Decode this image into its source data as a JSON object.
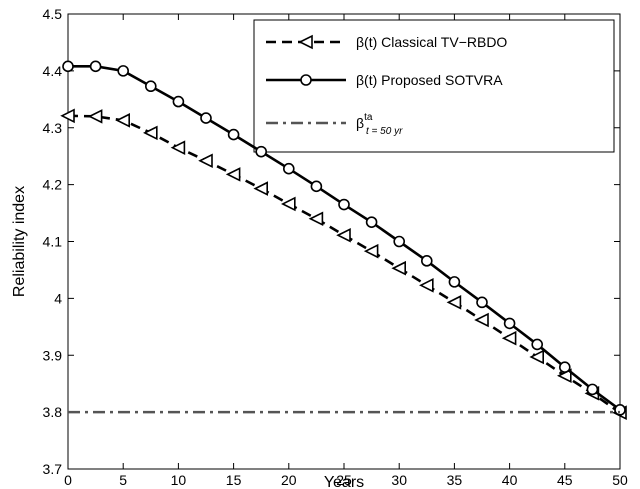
{
  "chart_data": {
    "type": "line",
    "xlabel": "Years",
    "ylabel": "Reliability index",
    "xlim": [
      0,
      50
    ],
    "ylim": [
      3.7,
      4.5
    ],
    "xticks": [
      "0",
      "5",
      "10",
      "15",
      "20",
      "25",
      "30",
      "35",
      "40",
      "45",
      "50"
    ],
    "yticks": [
      "3.7",
      "3.8",
      "3.9",
      "4",
      "4.1",
      "4.2",
      "4.3",
      "4.4",
      "4.5"
    ],
    "grid": false,
    "legend_position": "top-right",
    "series": [
      {
        "name": "β(t)  Classical TV−RBDO",
        "line_style": "dashed",
        "marker": "triangle-left",
        "color": "#000000",
        "x": [
          0,
          2.5,
          5,
          7.5,
          10,
          12.5,
          15,
          17.5,
          20,
          22.5,
          25,
          27.5,
          30,
          32.5,
          35,
          37.5,
          40,
          42.5,
          45,
          47.5,
          50
        ],
        "y": [
          4.321,
          4.32,
          4.313,
          4.291,
          4.265,
          4.242,
          4.218,
          4.193,
          4.166,
          4.14,
          4.111,
          4.083,
          4.053,
          4.023,
          3.993,
          3.962,
          3.93,
          3.897,
          3.864,
          3.833,
          3.799
        ]
      },
      {
        "name": "β(t)  Proposed SOTVRA",
        "line_style": "solid",
        "marker": "circle",
        "color": "#000000",
        "x": [
          0,
          2.5,
          5,
          7.5,
          10,
          12.5,
          15,
          17.5,
          20,
          22.5,
          25,
          27.5,
          30,
          32.5,
          35,
          37.5,
          40,
          42.5,
          45,
          47.5,
          50
        ],
        "y": [
          4.408,
          4.408,
          4.4,
          4.373,
          4.346,
          4.317,
          4.288,
          4.258,
          4.228,
          4.197,
          4.165,
          4.134,
          4.1,
          4.066,
          4.029,
          3.993,
          3.956,
          3.919,
          3.879,
          3.84,
          3.804
        ]
      },
      {
        "name": "β",
        "name_sup": "ta",
        "name_sub": "t = 50 yr",
        "line_style": "dash-dot",
        "marker": "none",
        "color": "#555555",
        "x": [
          0,
          50
        ],
        "y": [
          3.8,
          3.8
        ]
      }
    ]
  }
}
